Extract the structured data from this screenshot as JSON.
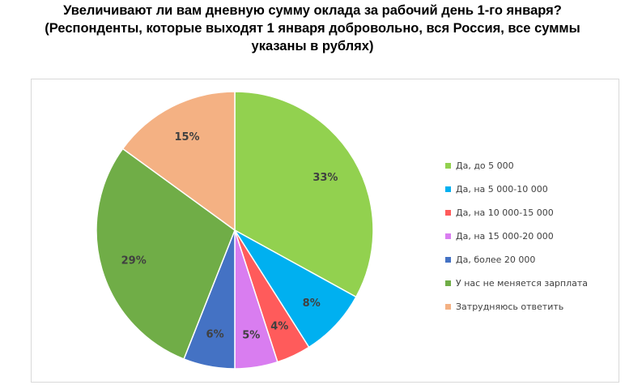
{
  "chart_data": {
    "type": "pie",
    "title_lines": [
      "Увеличивают ли вам дневную сумму оклада за рабочий день 1-го января?",
      "(Респонденты, которые выходят 1 января добровольно, вся Россия, все суммы",
      "указаны в рублях)"
    ],
    "categories": [
      "Да, до 5 000",
      "Да, на 5 000-10 000",
      "Да, на 10 000-15 000",
      "Да, на 15 000-20 000",
      "Да, более 20 000",
      "У нас не меняется зарплата",
      "Затрудняюсь ответить"
    ],
    "values": [
      33,
      8,
      4,
      5,
      6,
      29,
      15
    ],
    "labels": [
      "33%",
      "8%",
      "4%",
      "5%",
      "6%",
      "29%",
      "15%"
    ],
    "colors": [
      "#92d14f",
      "#00b0f0",
      "#ff5b5b",
      "#d97df0",
      "#4472c4",
      "#70ad47",
      "#f4b183"
    ],
    "legend_position": "right"
  }
}
